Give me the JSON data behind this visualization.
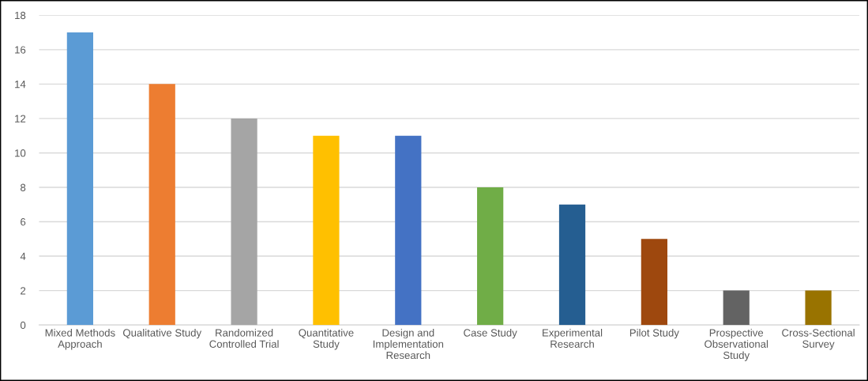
{
  "chart_data": {
    "type": "bar",
    "categories": [
      "Mixed Methods\nApproach",
      "Qualitative Study",
      "Randomized\nControlled Trial",
      "Quantitative\nStudy",
      "Design and\nImplementation\nResearch",
      "Case Study",
      "Experimental\nResearch",
      "Pilot Study",
      "Prospective\nObservational\nStudy",
      "Cross-Sectional\nSurvey"
    ],
    "values": [
      17,
      14,
      12,
      11,
      11,
      8,
      7,
      5,
      2,
      2
    ],
    "colors": [
      "#5b9bd5",
      "#ed7d31",
      "#a5a5a5",
      "#ffc000",
      "#4472c4",
      "#70ad47",
      "#255e91",
      "#9e480e",
      "#636363",
      "#997300"
    ],
    "ylim": [
      0,
      18
    ],
    "yticks": [
      0,
      2,
      4,
      6,
      8,
      10,
      12,
      14,
      16,
      18
    ],
    "grid": "y"
  }
}
